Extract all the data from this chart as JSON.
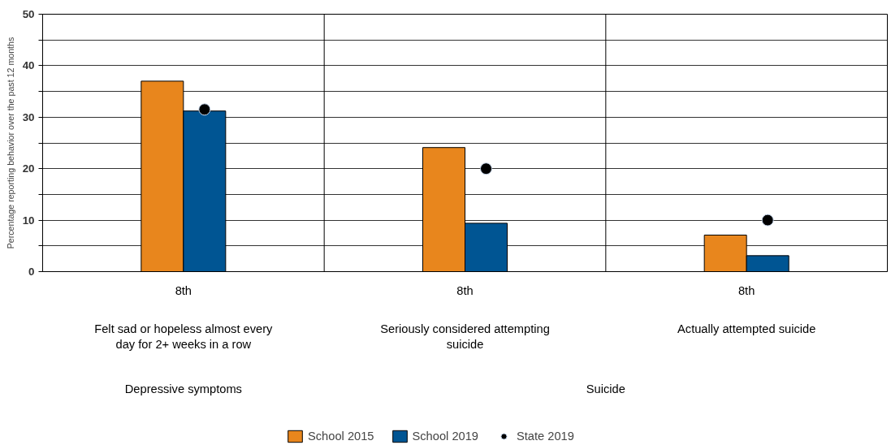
{
  "chart_data": {
    "type": "bar",
    "ylabel": "Percentage reporting behavior over the past 12 months",
    "categories": [
      "8th",
      "8th",
      "8th"
    ],
    "series": [
      {
        "name": "School 2015",
        "color": "#e8861d",
        "values": [
          37,
          24.1,
          7.1
        ]
      },
      {
        "name": "School 2019",
        "color": "#005593",
        "values": [
          31.2,
          9.4,
          3.1
        ]
      },
      {
        "name": "State 2019",
        "color": "#000000",
        "type": "scatter",
        "values": [
          31.5,
          20,
          10
        ]
      }
    ],
    "ylim": [
      0,
      50
    ],
    "yticks": [
      0,
      {
        "value": 5,
        "label": null
      },
      10,
      {
        "value": 15,
        "label": null
      },
      20,
      {
        "value": 25,
        "label": null
      },
      30,
      {
        "value": 35,
        "label": null
      },
      40,
      {
        "value": 45,
        "label": null
      },
      50
    ],
    "grid": true,
    "legend": "bottom",
    "marker": "circle",
    "annotations": [
      "Felt sad or hopeless almost every day for 2+ weeks in a row",
      "Seriously considered attempting suicide",
      "Actually attempted suicide",
      "Depressive symptoms",
      "Suicide"
    ]
  }
}
